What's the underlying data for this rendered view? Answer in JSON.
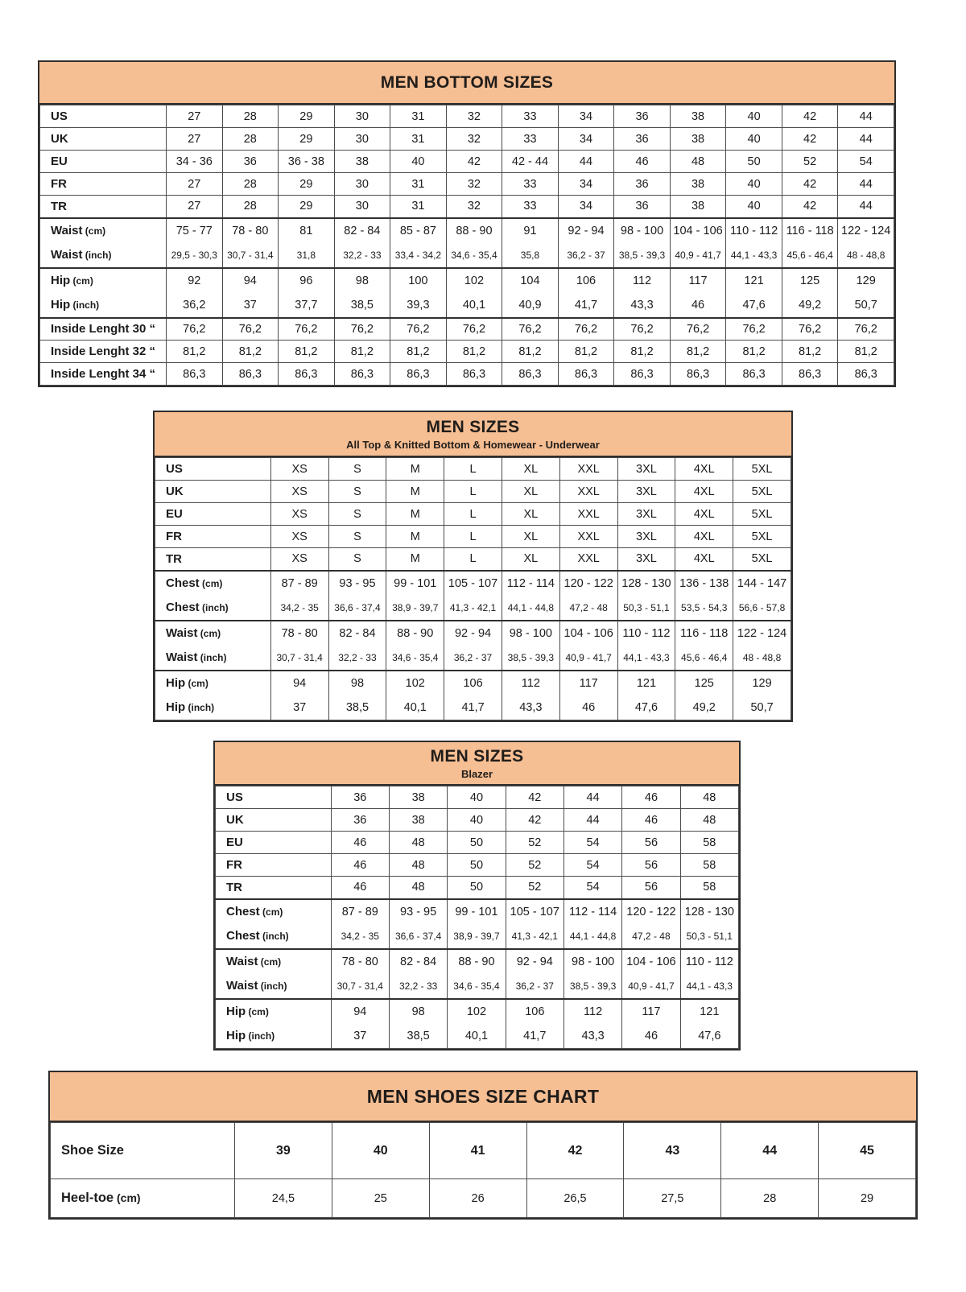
{
  "colors": {
    "header_fill": "#F6BE93",
    "border": "#2e2e2e",
    "grid_line": "#4b4b4b",
    "text": "#1c1c1c"
  },
  "tables": [
    {
      "title": "MEN BOTTOM SIZES",
      "subtitle": "",
      "rows": [
        {
          "label": "US",
          "cells": [
            "27",
            "28",
            "29",
            "30",
            "31",
            "32",
            "33",
            "34",
            "36",
            "38",
            "40",
            "42",
            "44"
          ]
        },
        {
          "label": "UK",
          "cells": [
            "27",
            "28",
            "29",
            "30",
            "31",
            "32",
            "33",
            "34",
            "36",
            "38",
            "40",
            "42",
            "44"
          ]
        },
        {
          "label": "EU",
          "cells": [
            "34 - 36",
            "36",
            "36 - 38",
            "38",
            "40",
            "42",
            "42 - 44",
            "44",
            "46",
            "48",
            "50",
            "52",
            "54"
          ]
        },
        {
          "label": "FR",
          "cells": [
            "27",
            "28",
            "29",
            "30",
            "31",
            "32",
            "33",
            "34",
            "36",
            "38",
            "40",
            "42",
            "44"
          ]
        },
        {
          "label": "TR",
          "cells": [
            "27",
            "28",
            "29",
            "30",
            "31",
            "32",
            "33",
            "34",
            "36",
            "38",
            "40",
            "42",
            "44"
          ]
        },
        {
          "label": "Waist",
          "unit": "(cm)",
          "pair": "start",
          "thick_top": true,
          "cells": [
            "75 - 77",
            "78 - 80",
            "81",
            "82 - 84",
            "85 - 87",
            "88 - 90",
            "91",
            "92 - 94",
            "98 - 100",
            "104 - 106",
            "110 - 112",
            "116 - 118",
            "122 - 124"
          ]
        },
        {
          "label": "Waist",
          "unit": "(inch)",
          "pair": "end",
          "small": true,
          "cells": [
            "29,5 - 30,3",
            "30,7 - 31,4",
            "31,8",
            "32,2 - 33",
            "33,4 - 34,2",
            "34,6 - 35,4",
            "35,8",
            "36,2 - 37",
            "38,5 - 39,3",
            "40,9 - 41,7",
            "44,1 - 43,3",
            "45,6 - 46,4",
            "48 - 48,8"
          ]
        },
        {
          "label": "Hip",
          "unit": "(cm)",
          "pair": "start",
          "thick_top": true,
          "cells": [
            "92",
            "94",
            "96",
            "98",
            "100",
            "102",
            "104",
            "106",
            "112",
            "117",
            "121",
            "125",
            "129"
          ]
        },
        {
          "label": "Hip",
          "unit": "(inch)",
          "pair": "end",
          "cells": [
            "36,2",
            "37",
            "37,7",
            "38,5",
            "39,3",
            "40,1",
            "40,9",
            "41,7",
            "43,3",
            "46",
            "47,6",
            "49,2",
            "50,7"
          ]
        },
        {
          "label": "Inside Lenght 30 “",
          "thick_top": true,
          "cells": [
            "76,2",
            "76,2",
            "76,2",
            "76,2",
            "76,2",
            "76,2",
            "76,2",
            "76,2",
            "76,2",
            "76,2",
            "76,2",
            "76,2",
            "76,2"
          ]
        },
        {
          "label": "Inside Lenght 32 “",
          "cells": [
            "81,2",
            "81,2",
            "81,2",
            "81,2",
            "81,2",
            "81,2",
            "81,2",
            "81,2",
            "81,2",
            "81,2",
            "81,2",
            "81,2",
            "81,2"
          ]
        },
        {
          "label": "Inside Lenght 34 “",
          "cells": [
            "86,3",
            "86,3",
            "86,3",
            "86,3",
            "86,3",
            "86,3",
            "86,3",
            "86,3",
            "86,3",
            "86,3",
            "86,3",
            "86,3",
            "86,3"
          ]
        }
      ]
    },
    {
      "title": "MEN SIZES",
      "subtitle": "All Top & Knitted Bottom & Homewear - Underwear",
      "rows": [
        {
          "label": "US",
          "cells": [
            "XS",
            "S",
            "M",
            "L",
            "XL",
            "XXL",
            "3XL",
            "4XL",
            "5XL"
          ]
        },
        {
          "label": "UK",
          "cells": [
            "XS",
            "S",
            "M",
            "L",
            "XL",
            "XXL",
            "3XL",
            "4XL",
            "5XL"
          ]
        },
        {
          "label": "EU",
          "cells": [
            "XS",
            "S",
            "M",
            "L",
            "XL",
            "XXL",
            "3XL",
            "4XL",
            "5XL"
          ]
        },
        {
          "label": "FR",
          "cells": [
            "XS",
            "S",
            "M",
            "L",
            "XL",
            "XXL",
            "3XL",
            "4XL",
            "5XL"
          ]
        },
        {
          "label": "TR",
          "cells": [
            "XS",
            "S",
            "M",
            "L",
            "XL",
            "XXL",
            "3XL",
            "4XL",
            "5XL"
          ]
        },
        {
          "label": "Chest",
          "unit": "(cm)",
          "pair": "start",
          "thick_top": true,
          "cells": [
            "87 - 89",
            "93 - 95",
            "99 - 101",
            "105 - 107",
            "112 - 114",
            "120 - 122",
            "128 - 130",
            "136 - 138",
            "144 - 147"
          ]
        },
        {
          "label": "Chest",
          "unit": "(inch)",
          "pair": "end",
          "small": true,
          "cells": [
            "34,2 - 35",
            "36,6 - 37,4",
            "38,9 - 39,7",
            "41,3 - 42,1",
            "44,1 - 44,8",
            "47,2 - 48",
            "50,3 - 51,1",
            "53,5 - 54,3",
            "56,6 - 57,8"
          ]
        },
        {
          "label": "Waist",
          "unit": "(cm)",
          "pair": "start",
          "thick_top": true,
          "cells": [
            "78 - 80",
            "82 - 84",
            "88 - 90",
            "92 - 94",
            "98 - 100",
            "104 - 106",
            "110 - 112",
            "116 - 118",
            "122 - 124"
          ]
        },
        {
          "label": "Waist",
          "unit": "(inch)",
          "pair": "end",
          "small": true,
          "cells": [
            "30,7 - 31,4",
            "32,2 - 33",
            "34,6 - 35,4",
            "36,2 - 37",
            "38,5 - 39,3",
            "40,9 - 41,7",
            "44,1 - 43,3",
            "45,6 - 46,4",
            "48 - 48,8"
          ]
        },
        {
          "label": "Hip",
          "unit": "(cm)",
          "pair": "start",
          "thick_top": true,
          "cells": [
            "94",
            "98",
            "102",
            "106",
            "112",
            "117",
            "121",
            "125",
            "129"
          ]
        },
        {
          "label": "Hip",
          "unit": "(inch)",
          "pair": "end",
          "cells": [
            "37",
            "38,5",
            "40,1",
            "41,7",
            "43,3",
            "46",
            "47,6",
            "49,2",
            "50,7"
          ]
        }
      ]
    },
    {
      "title": "MEN SIZES",
      "subtitle": "Blazer",
      "rows": [
        {
          "label": "US",
          "cells": [
            "36",
            "38",
            "40",
            "42",
            "44",
            "46",
            "48"
          ]
        },
        {
          "label": "UK",
          "cells": [
            "36",
            "38",
            "40",
            "42",
            "44",
            "46",
            "48"
          ]
        },
        {
          "label": "EU",
          "cells": [
            "46",
            "48",
            "50",
            "52",
            "54",
            "56",
            "58"
          ]
        },
        {
          "label": "FR",
          "cells": [
            "46",
            "48",
            "50",
            "52",
            "54",
            "56",
            "58"
          ]
        },
        {
          "label": "TR",
          "cells": [
            "46",
            "48",
            "50",
            "52",
            "54",
            "56",
            "58"
          ]
        },
        {
          "label": "Chest",
          "unit": "(cm)",
          "pair": "start",
          "thick_top": true,
          "cells": [
            "87 - 89",
            "93 - 95",
            "99 - 101",
            "105 - 107",
            "112 - 114",
            "120 - 122",
            "128 - 130"
          ]
        },
        {
          "label": "Chest",
          "unit": "(inch)",
          "pair": "end",
          "small": true,
          "cells": [
            "34,2 - 35",
            "36,6 - 37,4",
            "38,9 - 39,7",
            "41,3 - 42,1",
            "44,1 - 44,8",
            "47,2 - 48",
            "50,3 - 51,1"
          ]
        },
        {
          "label": "Waist",
          "unit": "(cm)",
          "pair": "start",
          "thick_top": true,
          "cells": [
            "78 - 80",
            "82 - 84",
            "88 - 90",
            "92 - 94",
            "98 - 100",
            "104 - 106",
            "110 - 112"
          ]
        },
        {
          "label": "Waist",
          "unit": "(inch)",
          "pair": "end",
          "small": true,
          "cells": [
            "30,7 - 31,4",
            "32,2 - 33",
            "34,6 - 35,4",
            "36,2 - 37",
            "38,5 - 39,3",
            "40,9 - 41,7",
            "44,1 - 43,3"
          ]
        },
        {
          "label": "Hip",
          "unit": "(cm)",
          "pair": "start",
          "thick_top": true,
          "cells": [
            "94",
            "98",
            "102",
            "106",
            "112",
            "117",
            "121"
          ]
        },
        {
          "label": "Hip",
          "unit": "(inch)",
          "pair": "end",
          "cells": [
            "37",
            "38,5",
            "40,1",
            "41,7",
            "43,3",
            "46",
            "47,6"
          ]
        }
      ]
    },
    {
      "title": "MEN SHOES SIZE CHART",
      "subtitle": "",
      "rows": [
        {
          "label": "Shoe Size",
          "bold": true,
          "tall": true,
          "cells": [
            "39",
            "40",
            "41",
            "42",
            "43",
            "44",
            "45"
          ]
        },
        {
          "label": "Heel-toe",
          "unit": "(cm)",
          "tall2": true,
          "cells": [
            "24,5",
            "25",
            "26",
            "26,5",
            "27,5",
            "28",
            "29"
          ]
        }
      ]
    }
  ]
}
